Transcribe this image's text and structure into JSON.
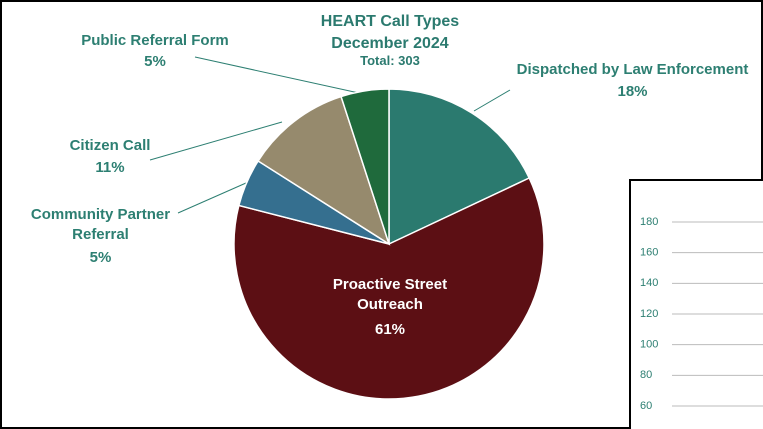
{
  "chart_data": [
    {
      "type": "pie",
      "title": "HEART Call Types",
      "subtitle": "December 2024",
      "annotation": "Total: 303",
      "categories": [
        "Dispatched by Law Enforcement",
        "Proactive Street Outreach",
        "Community Partner Referral",
        "Citizen Call",
        "Public Referral Form"
      ],
      "values": [
        18,
        61,
        5,
        11,
        5
      ],
      "value_labels": [
        "18%",
        "61%",
        "5%",
        "11%",
        "5%"
      ],
      "colors": [
        "#2b7a6f",
        "#5c0f14",
        "#356f8f",
        "#968a6d",
        "#1f6a3c"
      ]
    },
    {
      "type": "bar",
      "ylim": [
        60,
        180
      ],
      "yticks": [
        180,
        160,
        140,
        120,
        100,
        80,
        60
      ],
      "grid": true
    }
  ]
}
